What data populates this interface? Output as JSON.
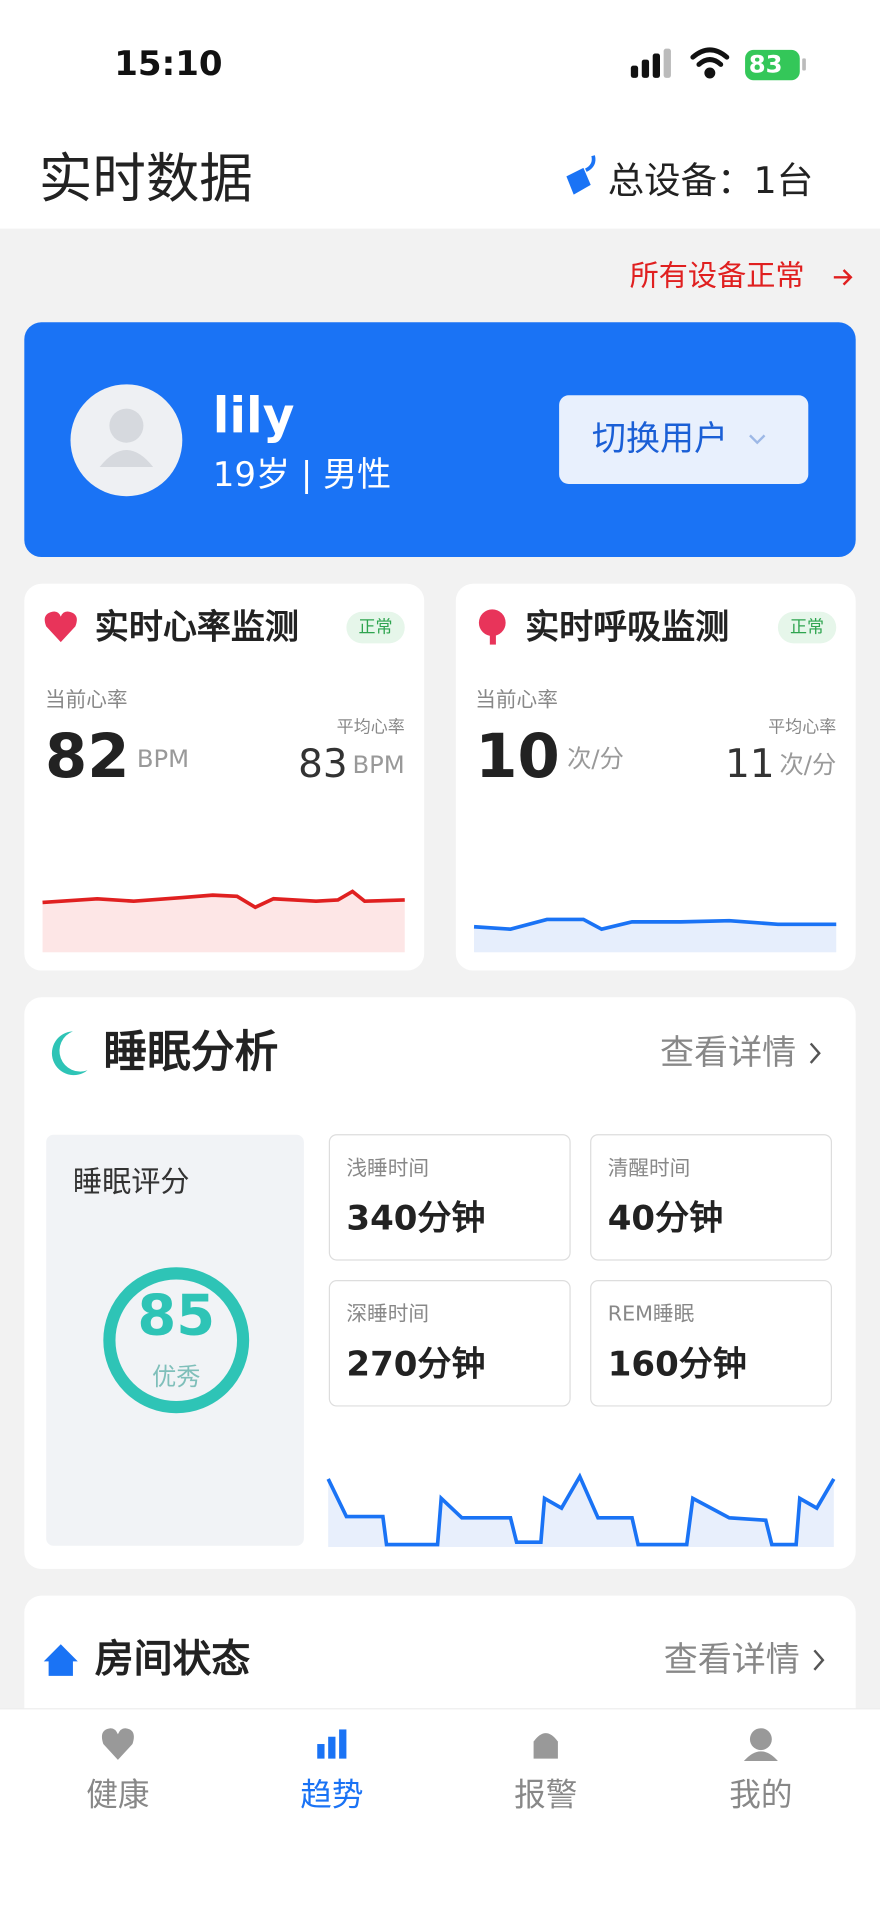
{
  "status": {
    "time": "15:10",
    "battery": "83"
  },
  "header": {
    "title": "实时数据",
    "devices": "总设备：1台"
  },
  "status_link": "所有设备正常",
  "user": {
    "name": "lily",
    "info": "19岁 | 男性",
    "switch": "切换用户"
  },
  "heart": {
    "title": "实时心率监测",
    "badge": "正常",
    "current_label": "当前心率",
    "current": "82",
    "unit": "BPM",
    "avg_label": "平均心率",
    "avg": "83",
    "avg_unit": "BPM"
  },
  "breath": {
    "title": "实时呼吸监测",
    "badge": "正常",
    "current_label": "当前心率",
    "current": "10",
    "unit": "次/分",
    "avg_label": "平均心率",
    "avg": "11",
    "avg_unit": "次/分"
  },
  "sleep": {
    "title": "睡眠分析",
    "detail": "查看详情",
    "score_label": "睡眠评分",
    "score": "85",
    "grade": "优秀",
    "stats": [
      {
        "label": "浅睡时间",
        "value": "340分钟"
      },
      {
        "label": "清醒时间",
        "value": "40分钟"
      },
      {
        "label": "深睡时间",
        "value": "270分钟"
      },
      {
        "label": "REM睡眠",
        "value": "160分钟"
      }
    ]
  },
  "room": {
    "title": "房间状态",
    "detail": "查看详情"
  },
  "tabs": [
    "健康",
    "趋势",
    "报警",
    "我的"
  ]
}
